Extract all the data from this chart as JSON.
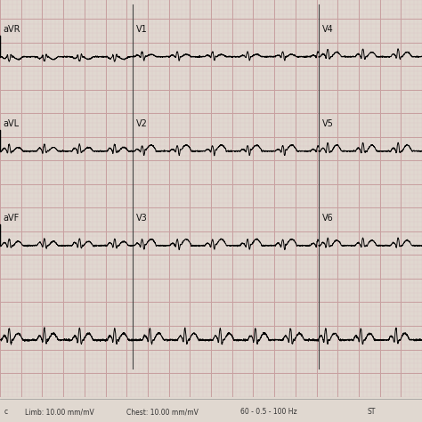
{
  "background_color": "#e0d8d0",
  "grid_major_color": "#c8a0a0",
  "grid_minor_color": "#dcc8c8",
  "ecg_color": "#000000",
  "fig_width": 4.74,
  "fig_height": 4.74,
  "dpi": 100,
  "bottom_texts": [
    [
      0.01,
      "c"
    ],
    [
      0.06,
      "Limb: 10.00 mm/mV"
    ],
    [
      0.3,
      "Chest: 10.00 mm/mV"
    ],
    [
      0.57,
      "60 - 0.5 - 100 Hz"
    ],
    [
      0.87,
      "ST"
    ]
  ]
}
